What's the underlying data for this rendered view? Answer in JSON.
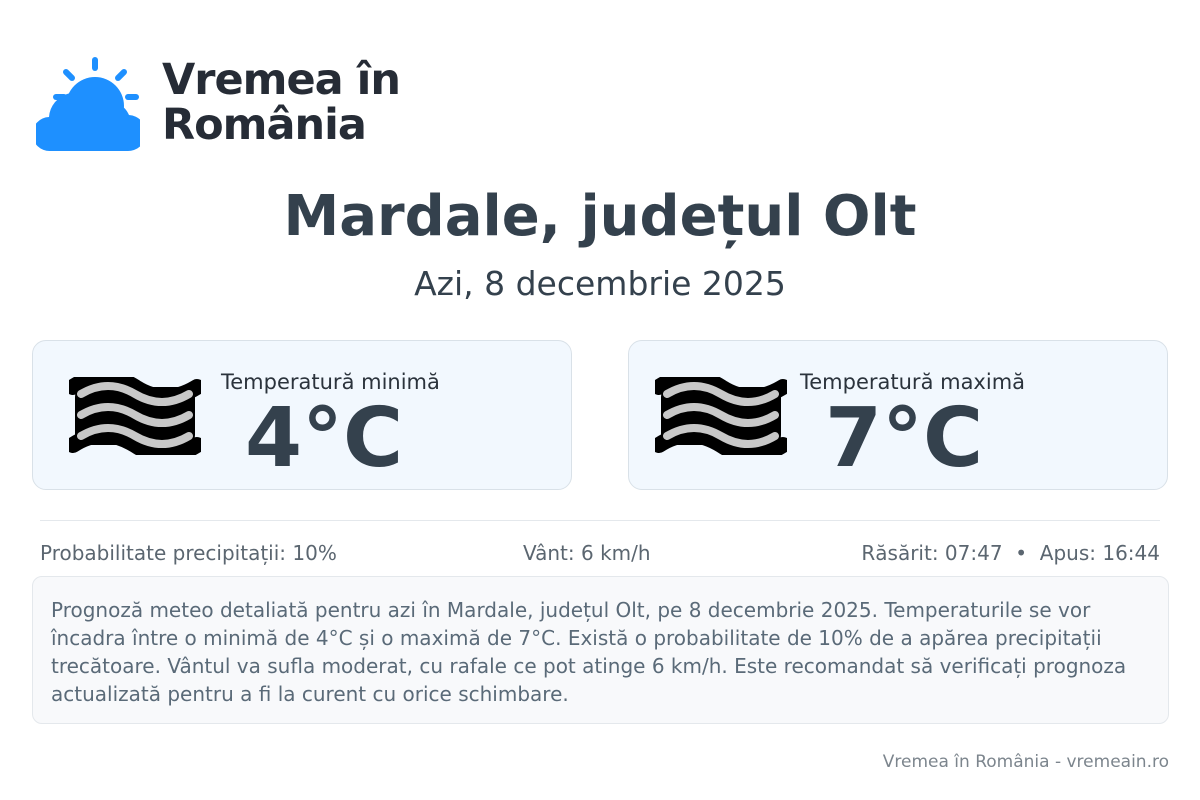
{
  "logo": {
    "line1": "Vremea în",
    "line2": "România",
    "icon": "sun-behind-cloud-icon",
    "color": "#1e90ff"
  },
  "title": "Mardale, județul Olt",
  "date": "Azi, 8 decembrie 2025",
  "cards": [
    {
      "label": "Temperatură minimă",
      "value": "4°C",
      "icon": "fog-icon"
    },
    {
      "label": "Temperatură maximă",
      "value": "7°C",
      "icon": "fog-icon"
    }
  ],
  "stats": {
    "precip": "Probabilitate precipitații: 10%",
    "wind": "Vânt: 6 km/h",
    "sun": "Răsărit: 07:47  •  Apus: 16:44"
  },
  "description": "Prognoză meteo detaliată pentru azi în Mardale, județul Olt, pe 8 decembrie 2025. Temperaturile se vor încadra între o minimă de 4°C și o maximă de 7°C. Există o probabilitate de 10% de a apărea precipitații trecătoare. Vântul va sufla moderat, cu rafale ce pot atinge 6 km/h. Este recomandat să verificați prognoza actualizată pentru a fi la curent cu orice schimbare.",
  "footer": "Vremea în România - vremeain.ro"
}
